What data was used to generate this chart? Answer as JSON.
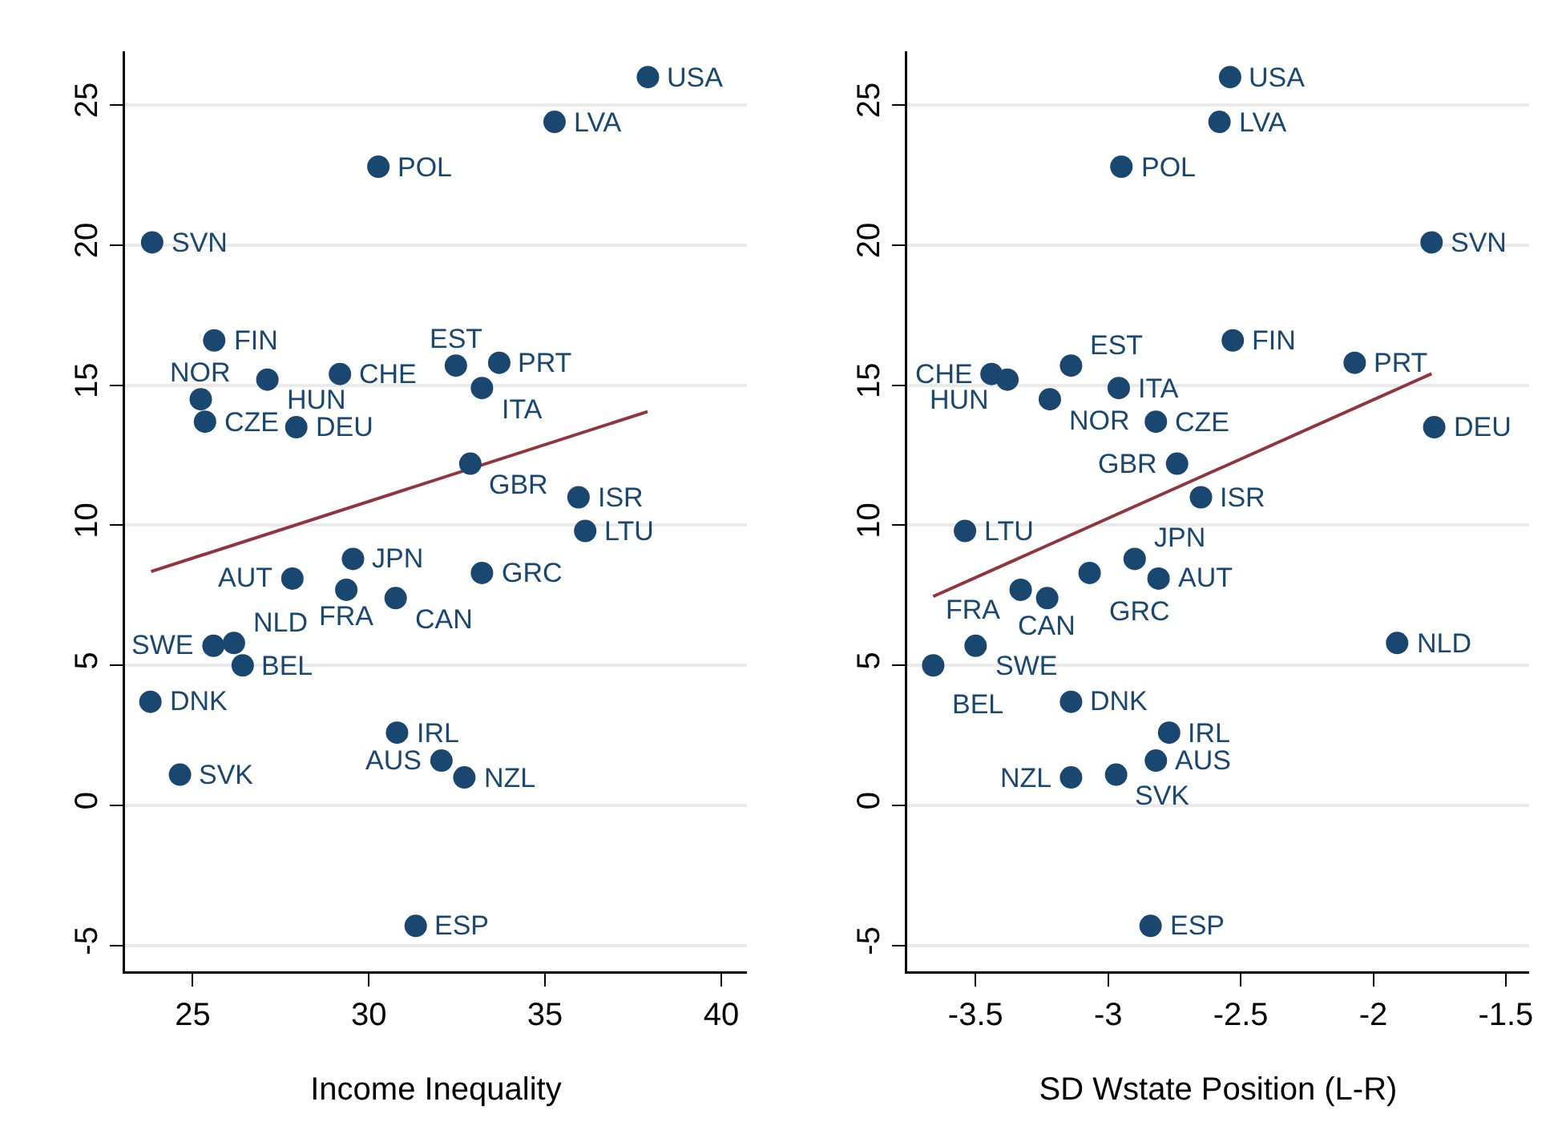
{
  "chart_data": [
    {
      "type": "scatter",
      "xlabel": "Income Inequality",
      "xlim": [
        23.08,
        40.73
      ],
      "xticks": [
        25,
        30,
        35,
        40
      ],
      "ylim": [
        -5.92,
        26.92
      ],
      "yticks": [
        -5,
        0,
        5,
        10,
        15,
        20,
        25
      ],
      "grid": "y",
      "series": [
        {
          "marker": "circle",
          "color": "#1a476f",
          "x": [
            37.92,
            35.27,
            30.27,
            23.85,
            25.61,
            27.12,
            29.18,
            32.47,
            33.7,
            33.21,
            25.23,
            25.35,
            27.94,
            32.88,
            35.95,
            36.14,
            29.55,
            27.83,
            29.36,
            30.76,
            33.21,
            25.59,
            26.17,
            26.42,
            23.8,
            30.8,
            32.06,
            32.71,
            24.64,
            31.33
          ],
          "values": [
            26.0,
            24.4,
            22.8,
            20.1,
            16.6,
            15.2,
            15.4,
            15.7,
            15.8,
            14.9,
            14.5,
            13.7,
            13.5,
            12.2,
            11.0,
            9.8,
            8.8,
            8.1,
            7.7,
            7.4,
            8.3,
            5.7,
            5.8,
            5.0,
            3.7,
            2.6,
            1.6,
            1.0,
            1.1,
            -4.3
          ],
          "value_labels": [
            "USA",
            "LVA",
            "POL",
            "SVN",
            "FIN",
            "HUN",
            "CHE",
            "EST",
            "PRT",
            "ITA",
            "NOR",
            "CZE",
            "DEU",
            "GBR",
            "ISR",
            "LTU",
            "JPN",
            "AUT",
            "FRA",
            "CAN",
            "GRC",
            "SWE",
            "NLD",
            "BEL",
            "DNK",
            "IRL",
            "AUS",
            "NZL",
            "SVK",
            "ESP"
          ]
        },
        {
          "type": "line",
          "color": "#90353b",
          "x": [
            23.82,
            37.91
          ],
          "values": [
            8.35,
            14.06
          ]
        }
      ]
    },
    {
      "type": "scatter",
      "xlabel": "SD Wstate Position (L-R)",
      "xlim": [
        -3.758,
        -1.412
      ],
      "xticks": [
        -3.5,
        -3,
        -2.5,
        -2,
        -1.5
      ],
      "ylim": [
        -5.92,
        26.92
      ],
      "yticks": [
        -5,
        0,
        5,
        10,
        15,
        20,
        25
      ],
      "grid": "y",
      "series": [
        {
          "marker": "circle",
          "color": "#1a476f",
          "x": [
            -2.54,
            -2.58,
            -2.95,
            -1.78,
            -2.53,
            -2.07,
            -1.77,
            -3.44,
            -3.38,
            -3.14,
            -3.22,
            -2.96,
            -2.82,
            -2.74,
            -2.65,
            -3.54,
            -2.9,
            -3.07,
            -2.81,
            -3.33,
            -3.23,
            -3.5,
            -1.91,
            -3.66,
            -3.14,
            -2.77,
            -2.82,
            -2.97,
            -3.14,
            -2.84
          ],
          "values": [
            26.0,
            24.4,
            22.8,
            20.1,
            16.6,
            15.8,
            13.5,
            15.4,
            15.2,
            15.7,
            14.5,
            14.9,
            13.7,
            12.2,
            11.0,
            9.8,
            8.8,
            8.3,
            8.1,
            7.7,
            7.4,
            5.7,
            5.8,
            5.0,
            3.7,
            2.6,
            1.6,
            1.1,
            1.0,
            -4.3
          ],
          "value_labels": [
            "USA",
            "LVA",
            "POL",
            "SVN",
            "FIN",
            "PRT",
            "DEU",
            "CHE",
            "HUN",
            "EST",
            "NOR",
            "ITA",
            "CZE",
            "GBR",
            "ISR",
            "LTU",
            "JPN",
            "GRC",
            "AUT",
            "FRA",
            "CAN",
            "SWE",
            "NLD",
            "BEL",
            "DNK",
            "IRL",
            "AUS",
            "SVK",
            "NZL",
            "ESP"
          ]
        },
        {
          "type": "line",
          "color": "#90353b",
          "x": [
            -3.66,
            -1.78
          ],
          "values": [
            7.46,
            15.41
          ]
        }
      ]
    }
  ]
}
